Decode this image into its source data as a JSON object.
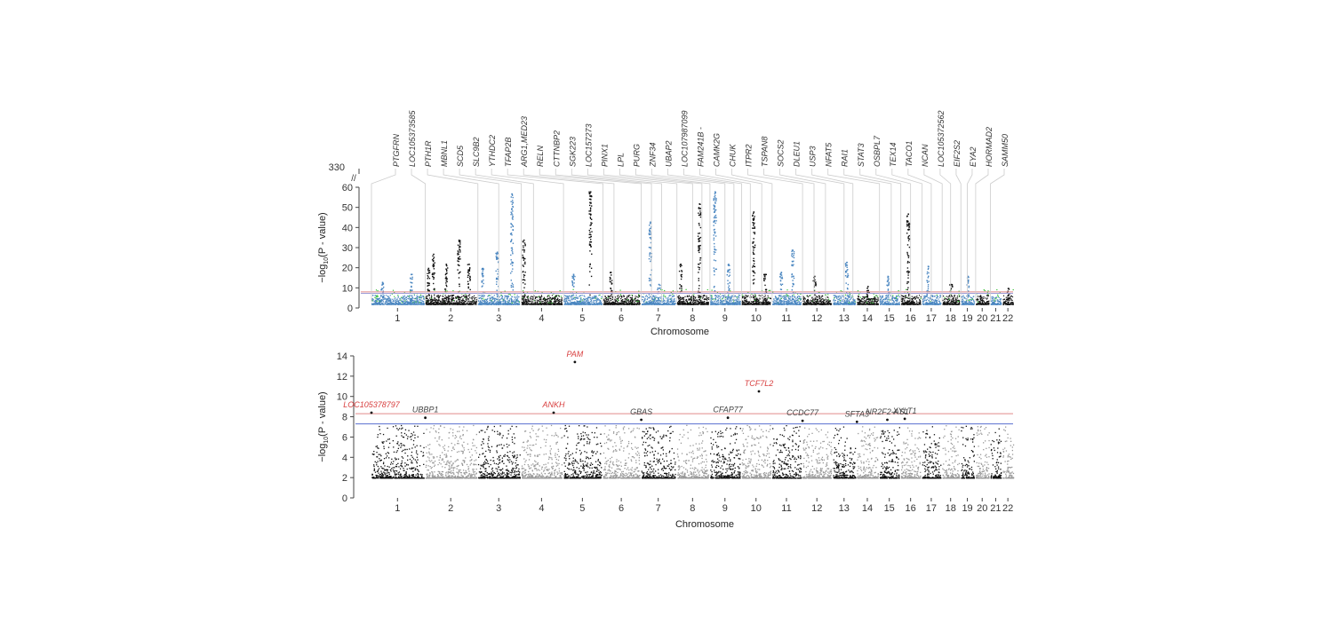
{
  "chart_data": [
    {
      "type": "scatter",
      "subtype": "manhattan",
      "xlabel": "Chromosome",
      "ylabel_main": "−log",
      "ylabel_sub": "10",
      "ylabel_tail": "(P - value)",
      "ylim": [
        0,
        60
      ],
      "yticks": [
        "0",
        "10",
        "20",
        "30",
        "40",
        "50",
        "60"
      ],
      "break_tick_label": "330",
      "break_symbol": "//",
      "chromosomes": [
        "1",
        "2",
        "3",
        "4",
        "5",
        "6",
        "7",
        "8",
        "9",
        "10",
        "11",
        "12",
        "13",
        "14",
        "15",
        "16",
        "17",
        "18",
        "19",
        "20",
        "21",
        "22"
      ],
      "thresholds": [
        {
          "value": 8.0,
          "color": "#e08a8a"
        },
        {
          "value": 7.3,
          "color": "#9b9bd6"
        }
      ],
      "colors": {
        "odd": "#4a86c0",
        "even": "#111111",
        "hit": "#2fc02f"
      },
      "peaks": [
        {
          "chr": 1,
          "pos": 0.2,
          "value": 13,
          "color": "#4a86c0"
        },
        {
          "chr": 1,
          "pos": 0.75,
          "value": 17,
          "color": "#4a86c0"
        },
        {
          "chr": 2,
          "pos": 0.05,
          "value": 20,
          "color": "#111111"
        },
        {
          "chr": 2,
          "pos": 0.15,
          "value": 27,
          "color": "#111111"
        },
        {
          "chr": 2,
          "pos": 0.4,
          "value": 22,
          "color": "#111111"
        },
        {
          "chr": 2,
          "pos": 0.65,
          "value": 34,
          "color": "#111111"
        },
        {
          "chr": 2,
          "pos": 0.85,
          "value": 22,
          "color": "#111111"
        },
        {
          "chr": 3,
          "pos": 0.1,
          "value": 20,
          "color": "#4a86c0"
        },
        {
          "chr": 3,
          "pos": 0.45,
          "value": 28,
          "color": "#4a86c0"
        },
        {
          "chr": 3,
          "pos": 0.8,
          "value": 57,
          "color": "#4a86c0"
        },
        {
          "chr": 4,
          "pos": 0.05,
          "value": 34,
          "color": "#111111"
        },
        {
          "chr": 5,
          "pos": 0.25,
          "value": 17,
          "color": "#4a86c0"
        },
        {
          "chr": 5,
          "pos": 0.7,
          "value": 58,
          "color": "#111111"
        },
        {
          "chr": 6,
          "pos": 0.2,
          "value": 18,
          "color": "#111111"
        },
        {
          "chr": 7,
          "pos": 0.25,
          "value": 43,
          "color": "#4a86c0"
        },
        {
          "chr": 7,
          "pos": 0.5,
          "value": 12,
          "color": "#4a86c0"
        },
        {
          "chr": 8,
          "pos": 0.1,
          "value": 22,
          "color": "#111111"
        },
        {
          "chr": 8,
          "pos": 0.7,
          "value": 52,
          "color": "#111111"
        },
        {
          "chr": 9,
          "pos": 0.15,
          "value": 58,
          "color": "#4a86c0"
        },
        {
          "chr": 9,
          "pos": 0.6,
          "value": 22,
          "color": "#4a86c0"
        },
        {
          "chr": 10,
          "pos": 0.4,
          "value": 48,
          "color": "#111111"
        },
        {
          "chr": 10,
          "pos": 0.8,
          "value": 17,
          "color": "#111111"
        },
        {
          "chr": 11,
          "pos": 0.3,
          "value": 18,
          "color": "#4a86c0"
        },
        {
          "chr": 11,
          "pos": 0.7,
          "value": 29,
          "color": "#4a86c0"
        },
        {
          "chr": 12,
          "pos": 0.4,
          "value": 16,
          "color": "#111111"
        },
        {
          "chr": 13,
          "pos": 0.6,
          "value": 23,
          "color": "#4a86c0"
        },
        {
          "chr": 14,
          "pos": 0.5,
          "value": 11,
          "color": "#111111"
        },
        {
          "chr": 15,
          "pos": 0.4,
          "value": 16,
          "color": "#4a86c0"
        },
        {
          "chr": 16,
          "pos": 0.35,
          "value": 47,
          "color": "#111111"
        },
        {
          "chr": 17,
          "pos": 0.3,
          "value": 21,
          "color": "#4a86c0"
        },
        {
          "chr": 18,
          "pos": 0.5,
          "value": 12,
          "color": "#111111"
        },
        {
          "chr": 19,
          "pos": 0.5,
          "value": 16,
          "color": "#4a86c0"
        },
        {
          "chr": 22,
          "pos": 0.5,
          "value": 10,
          "color": "#111111"
        }
      ],
      "gene_labels": [
        {
          "text": "PTGFRN",
          "chr": 1,
          "pos": 0.0
        },
        {
          "text": "LOC105373585",
          "chr": 2,
          "pos": 0.0
        },
        {
          "text": "PTH1R",
          "chr": 3,
          "pos": 0.0
        },
        {
          "text": "MBNL1",
          "chr": 3,
          "pos": 0.5
        },
        {
          "text": "SCD5",
          "chr": 4,
          "pos": 0.0
        },
        {
          "text": "SLC9B2",
          "chr": 4,
          "pos": 0.3
        },
        {
          "text": "YTHDC2",
          "chr": 5,
          "pos": 0.0
        },
        {
          "text": "TFAP2B",
          "chr": 6,
          "pos": 0.0
        },
        {
          "text": "ARG1,MED23",
          "chr": 6,
          "pos": 0.3
        },
        {
          "text": "RELN",
          "chr": 7,
          "pos": 0.0
        },
        {
          "text": "CTTNBP2",
          "chr": 7,
          "pos": 0.3
        },
        {
          "text": "SGK223",
          "chr": 7,
          "pos": 0.6
        },
        {
          "text": "LOC157273",
          "chr": 8,
          "pos": 0.0
        },
        {
          "text": "PINX1",
          "chr": 8,
          "pos": 0.5
        },
        {
          "text": "LPL",
          "chr": 8,
          "pos": 0.8
        },
        {
          "text": "PURG",
          "chr": 9,
          "pos": 0.0
        },
        {
          "text": "ZNF34",
          "chr": 9,
          "pos": 0.5
        },
        {
          "text": "UBAP2",
          "chr": 9,
          "pos": 0.8
        },
        {
          "text": "LOC107987099",
          "chr": 10,
          "pos": 0.0
        },
        {
          "text": "FAM241B -",
          "chr": 10,
          "pos": 0.3
        },
        {
          "text": "CAMK2G",
          "chr": 10,
          "pos": 0.7
        },
        {
          "text": "CHUK",
          "chr": 11,
          "pos": 0.0
        },
        {
          "text": "ITPR2",
          "chr": 12,
          "pos": 0.0
        },
        {
          "text": "TSPAN8",
          "chr": 12,
          "pos": 0.4
        },
        {
          "text": "SOCS2",
          "chr": 12,
          "pos": 0.8
        },
        {
          "text": "DLEU1",
          "chr": 13,
          "pos": 0.5
        },
        {
          "text": "USP3",
          "chr": 13,
          "pos": 0.9
        },
        {
          "text": "NFAT5",
          "chr": 15,
          "pos": 0.0
        },
        {
          "text": "RAI1",
          "chr": 15,
          "pos": 0.6
        },
        {
          "text": "STAT3",
          "chr": 16,
          "pos": 0.0
        },
        {
          "text": "OSBPL7",
          "chr": 16,
          "pos": 0.5
        },
        {
          "text": "TEX14",
          "chr": 17,
          "pos": 0.0
        },
        {
          "text": "TACO1",
          "chr": 17,
          "pos": 0.5
        },
        {
          "text": "NCAN",
          "chr": 18,
          "pos": 0.0
        },
        {
          "text": "LOC105372562",
          "chr": 18,
          "pos": 0.5
        },
        {
          "text": "EIF2S2",
          "chr": 19,
          "pos": 0.0
        },
        {
          "text": "EYA2",
          "chr": 19,
          "pos": 0.5
        },
        {
          "text": "HORMAD2",
          "chr": 20,
          "pos": 0.0
        },
        {
          "text": "SAMM50",
          "chr": 21,
          "pos": 0.0
        }
      ]
    },
    {
      "type": "scatter",
      "subtype": "manhattan",
      "xlabel": "Chromosome",
      "ylabel_main": "−log",
      "ylabel_sub": "10",
      "ylabel_tail": "(P - value)",
      "ylim": [
        0,
        14
      ],
      "yticks": [
        "0",
        "2",
        "4",
        "6",
        "8",
        "10",
        "12",
        "14"
      ],
      "chromosomes": [
        "1",
        "2",
        "3",
        "4",
        "5",
        "6",
        "7",
        "8",
        "9",
        "10",
        "11",
        "12",
        "13",
        "14",
        "15",
        "16",
        "17",
        "18",
        "19",
        "20",
        "21",
        "22"
      ],
      "thresholds": [
        {
          "value": 8.3,
          "color": "#e08a8a"
        },
        {
          "value": 7.3,
          "color": "#5a6fd0"
        }
      ],
      "colors": {
        "odd": "#111111",
        "even": "#999999"
      },
      "annotations": [
        {
          "text": "LOC105378797",
          "chr": 1,
          "pos": 0.0,
          "value": 8.4,
          "color": "#d84040"
        },
        {
          "text": "UBBP1",
          "chr": 2,
          "pos": 0.0,
          "value": 7.9,
          "color": "#444444"
        },
        {
          "text": "ANKH",
          "chr": 4,
          "pos": 0.8,
          "value": 8.4,
          "color": "#d84040"
        },
        {
          "text": "PAM",
          "chr": 5,
          "pos": 0.3,
          "value": 13.4,
          "color": "#d84040"
        },
        {
          "text": "GBAS",
          "chr": 7,
          "pos": 0.0,
          "value": 7.7,
          "color": "#444444"
        },
        {
          "text": "CFAP77",
          "chr": 9,
          "pos": 0.6,
          "value": 7.9,
          "color": "#444444"
        },
        {
          "text": "TCF7L2",
          "chr": 10,
          "pos": 0.6,
          "value": 10.5,
          "color": "#d84040"
        },
        {
          "text": "CCDC77",
          "chr": 12,
          "pos": 0.0,
          "value": 7.6,
          "color": "#444444"
        },
        {
          "text": "SFTA3",
          "chr": 14,
          "pos": 0.0,
          "value": 7.5,
          "color": "#444444"
        },
        {
          "text": "NR2F2-AS1",
          "chr": 15,
          "pos": 0.4,
          "value": 7.7,
          "color": "#444444"
        },
        {
          "text": "XYLT1",
          "chr": 16,
          "pos": 0.2,
          "value": 7.8,
          "color": "#444444"
        }
      ]
    }
  ]
}
